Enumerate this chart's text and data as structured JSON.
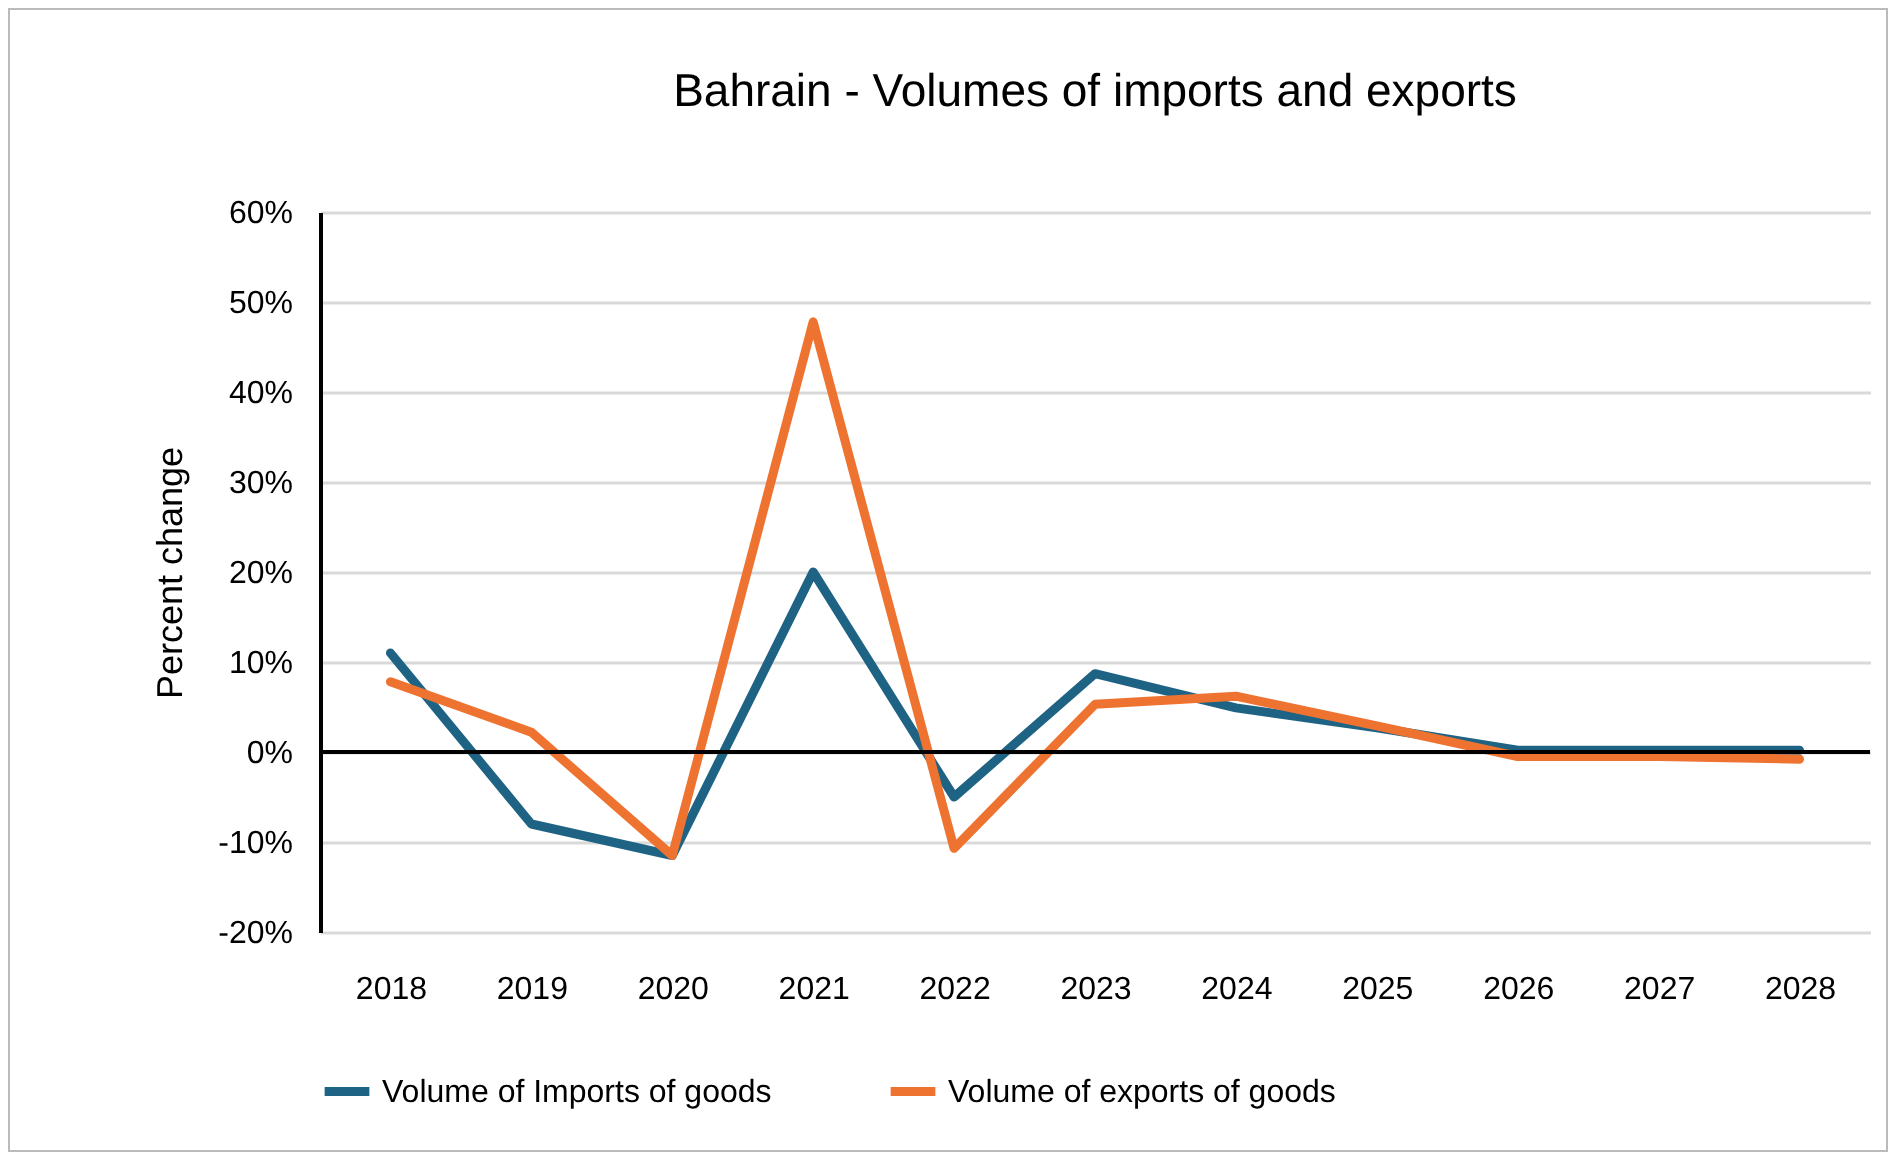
{
  "chart_data": {
    "type": "line",
    "title": "Bahrain - Volumes of imports and exports",
    "ylabel": "Percent change",
    "categories": [
      "2018",
      "2019",
      "2020",
      "2021",
      "2022",
      "2023",
      "2024",
      "2025",
      "2026",
      "2027",
      "2028"
    ],
    "series": [
      {
        "name": "Volume of Imports of goods",
        "color": "#1f6384",
        "values": [
          11,
          -8,
          -11.5,
          20,
          -5,
          8.7,
          4.9,
          2.7,
          0.2,
          0.2,
          0.2
        ]
      },
      {
        "name": "Volume of exports of goods",
        "color": "#ee7330",
        "values": [
          7.8,
          2.2,
          -11.5,
          47.8,
          -10.7,
          5.3,
          6.2,
          2.9,
          -0.5,
          -0.5,
          -0.8
        ]
      }
    ],
    "ylim": [
      -20,
      60
    ],
    "yticks": [
      {
        "value": -20,
        "label": "-20%"
      },
      {
        "value": -10,
        "label": "-10%"
      },
      {
        "value": 0,
        "label": "0%"
      },
      {
        "value": 10,
        "label": "10%"
      },
      {
        "value": 20,
        "label": "20%"
      },
      {
        "value": 30,
        "label": "30%"
      },
      {
        "value": 40,
        "label": "40%"
      },
      {
        "value": 50,
        "label": "50%"
      },
      {
        "value": 60,
        "label": "60%"
      }
    ],
    "ref_lines": [
      {
        "axis": "y",
        "value": 0,
        "color": "#000000"
      }
    ],
    "grid": "y",
    "legend": "bottom",
    "marker": "none",
    "line_style": "solid"
  }
}
